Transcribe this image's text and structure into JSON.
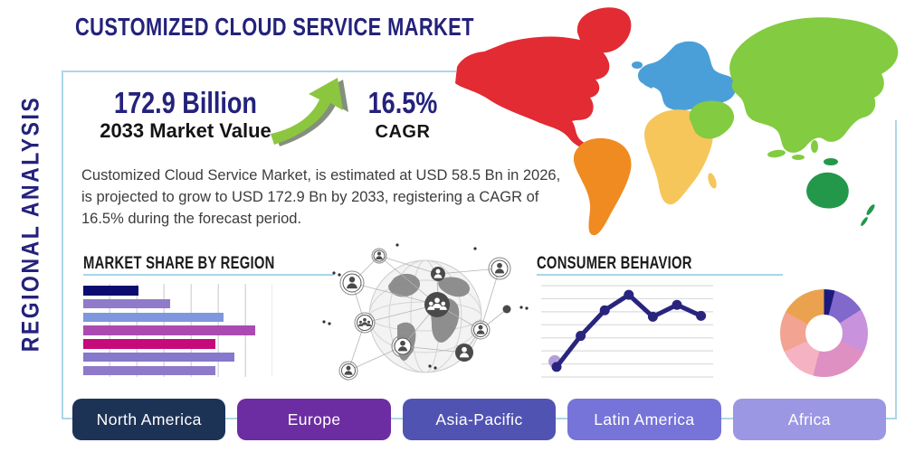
{
  "title": "CUSTOMIZED CLOUD SERVICE MARKET",
  "side_label": "REGIONAL ANALYSIS",
  "stats": {
    "market_value": "172.9 Billion",
    "market_value_label": "2033 Market Value",
    "cagr_value": "16.5%",
    "cagr_label": "CAGR",
    "arrow_icon": "growth-arrow-up-right",
    "arrow_color": "#8cc63e",
    "arrow_shadow_color": "#6f7b66"
  },
  "description": "Customized Cloud Service Market, is estimated at USD 58.5 Bn in 2026, is projected to grow to USD 172.9 Bn by 2033, registering a CAGR of 16.5% during the forecast period.",
  "colors": {
    "navy_text": "#24227b",
    "black_text": "#141414",
    "body_text": "#3c3c3c",
    "frame_border": "#abd6ea",
    "heading_underline": "#a9d6e8"
  },
  "map": {
    "name": "world-map-by-region",
    "regions": [
      {
        "name": "north-america",
        "color": "#e22b33"
      },
      {
        "name": "south-america",
        "color": "#ef8b21"
      },
      {
        "name": "europe",
        "color": "#4a9fd9"
      },
      {
        "name": "africa",
        "color": "#f6c65b"
      },
      {
        "name": "asia",
        "color": "#83cb40"
      },
      {
        "name": "australia",
        "color": "#23984a"
      }
    ]
  },
  "buttons": [
    {
      "label": "North America",
      "color": "#1d3356"
    },
    {
      "label": "Europe",
      "color": "#6c2da2"
    },
    {
      "label": "Asia-Pacific",
      "color": "#5153b2"
    },
    {
      "label": "Latin America",
      "color": "#7673d9"
    },
    {
      "label": "Africa",
      "color": "#9b97e2"
    }
  ],
  "chart_data": [
    {
      "type": "bar",
      "title": "MARKET SHARE BY REGION",
      "orientation": "horizontal",
      "values": [
        29,
        46,
        74,
        91,
        70,
        80,
        70
      ],
      "xlim": [
        0,
        100
      ],
      "colors": [
        "#0b0b70",
        "#8f7bc9",
        "#7e97de",
        "#ab4bb1",
        "#c70a7a",
        "#8578cd",
        "#8f79c9"
      ],
      "grid": "vertical",
      "xlabel": "",
      "ylabel": ""
    },
    {
      "type": "line",
      "title": "CONSUMER BEHAVIOR",
      "values": [
        11,
        45,
        73,
        90,
        66,
        79,
        67
      ],
      "ylim": [
        0,
        100
      ],
      "gridlines": 8,
      "grid": "horizontal",
      "line_color": "#29247e",
      "start_dot_color": "#b49fdd",
      "xlabel": "",
      "ylabel": ""
    },
    {
      "type": "pie",
      "donut": true,
      "slices": [
        {
          "value": 4,
          "color": "#1b1a7e"
        },
        {
          "value": 12,
          "color": "#8168cb"
        },
        {
          "value": 16,
          "color": "#c892dc"
        },
        {
          "value": 22,
          "color": "#df90c2"
        },
        {
          "value": 14,
          "color": "#f5b2c2"
        },
        {
          "value": 15,
          "color": "#f2a392"
        },
        {
          "value": 17,
          "color": "#eba24e"
        }
      ]
    }
  ]
}
